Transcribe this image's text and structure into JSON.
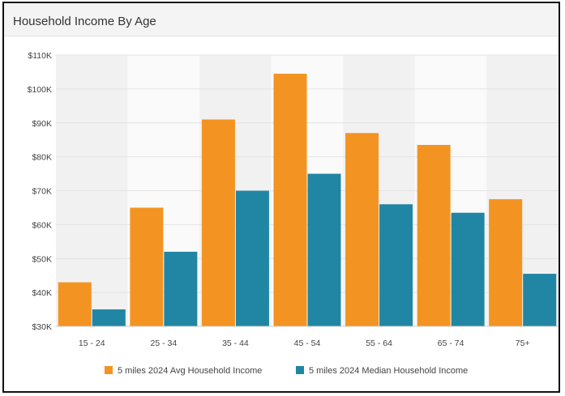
{
  "chart_data": {
    "type": "bar",
    "title": "Household Income By Age",
    "categories": [
      "15 - 24",
      "25 - 34",
      "35 - 44",
      "45 - 54",
      "55 - 64",
      "65 - 74",
      "75+"
    ],
    "series": [
      {
        "name": "5 miles 2024 Avg Household Income",
        "color": "#f39422",
        "values": [
          43000,
          65000,
          91000,
          104500,
          87000,
          83500,
          67500
        ]
      },
      {
        "name": "5 miles 2024 Median Household Income",
        "color": "#2086a3",
        "values": [
          35000,
          52000,
          70000,
          75000,
          66000,
          63500,
          45500
        ]
      }
    ],
    "y_ticks": [
      "$30K",
      "$40K",
      "$50K",
      "$60K",
      "$70K",
      "$80K",
      "$90K",
      "$100K",
      "$110K"
    ],
    "ylim": [
      30000,
      110000
    ],
    "grid": true,
    "legend_position": "bottom-center",
    "band_colors": [
      "#f1f1f1",
      "#fafafa"
    ]
  }
}
